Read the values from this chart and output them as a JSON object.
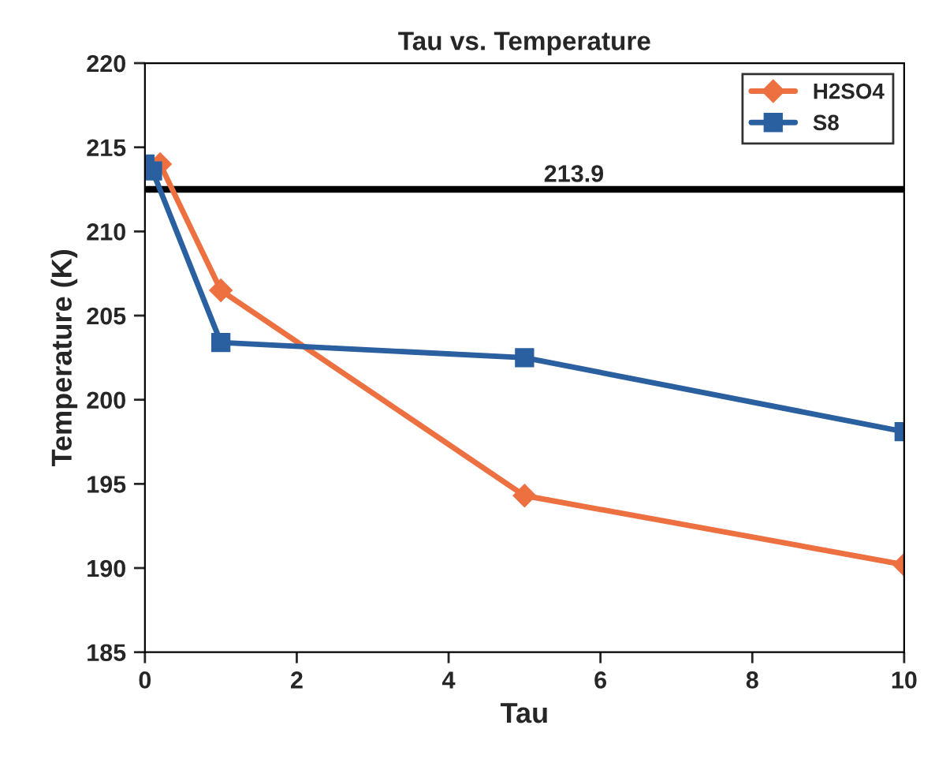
{
  "chart_data": {
    "type": "line",
    "title": "Tau vs. Temperature",
    "xlabel": "Tau",
    "ylabel": "Temperature (K)",
    "xlim": [
      0,
      10
    ],
    "xticks": [
      0,
      2,
      4,
      6,
      8,
      10
    ],
    "ylim": [
      185,
      220
    ],
    "yticks": [
      185,
      190,
      195,
      200,
      205,
      210,
      215,
      220
    ],
    "series": [
      {
        "name": "H2SO4",
        "color": "#ed7040",
        "marker": "diamond",
        "x": [
          0.2,
          1,
          5,
          10
        ],
        "values": [
          214.0,
          206.5,
          194.3,
          190.2
        ]
      },
      {
        "name": "S8",
        "color": "#2a5fa0",
        "marker": "square",
        "x": [
          0,
          0.1,
          1,
          5,
          10
        ],
        "values": [
          214.0,
          213.6,
          203.4,
          202.5,
          198.1
        ]
      }
    ],
    "ref_lines": [
      {
        "axis": "y",
        "value": 212.5,
        "color": "#000000"
      }
    ],
    "annotations": [
      "213.9"
    ],
    "legend": "top right",
    "grid": false
  }
}
